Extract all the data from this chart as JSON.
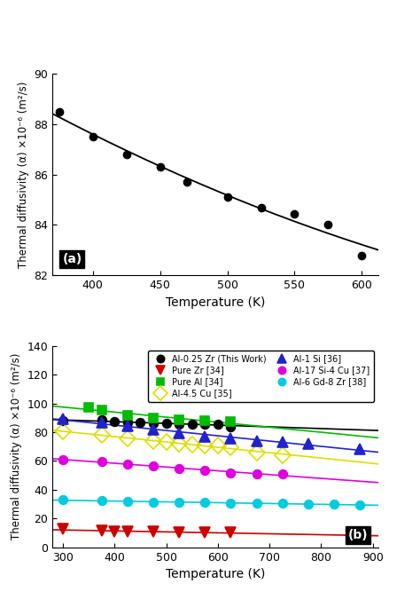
{
  "panel_a": {
    "xlabel": "Temperature (K)",
    "ylabel": "Thermal diffusivity (α) ×10⁻⁶ (m²/s)",
    "xlim": [
      370,
      612
    ],
    "ylim": [
      82,
      90
    ],
    "yticks": [
      82,
      84,
      86,
      88,
      90
    ],
    "xticks": [
      400,
      450,
      500,
      550,
      600
    ],
    "data_x": [
      375,
      400,
      425,
      450,
      470,
      500,
      525,
      550,
      575,
      600
    ],
    "data_y": [
      88.5,
      87.5,
      86.8,
      86.3,
      85.7,
      85.1,
      84.7,
      84.45,
      84.0,
      82.8
    ],
    "color": "#000000",
    "label": "(a)"
  },
  "panel_b": {
    "xlabel": "Temperature (K)",
    "ylabel": "Thermal diffusivity (α) ×10⁻⁶ (m²/s)",
    "xlim": [
      280,
      910
    ],
    "ylim": [
      0,
      140
    ],
    "yticks": [
      0,
      20,
      40,
      60,
      80,
      100,
      120,
      140
    ],
    "xticks": [
      300,
      400,
      500,
      600,
      700,
      800,
      900
    ],
    "label": "(b)",
    "series": [
      {
        "label": "Al-0.25 Zr (This Work)",
        "color": "#000000",
        "marker": "o",
        "markersize": 7,
        "x": [
          300,
          375,
          400,
          425,
          450,
          475,
          500,
          525,
          550,
          575,
          600,
          625
        ],
        "y": [
          88.0,
          88.5,
          87.5,
          87.0,
          86.5,
          86.2,
          86.0,
          85.8,
          85.5,
          85.5,
          85.5,
          84.0
        ]
      },
      {
        "label": "Pure Zr [34]",
        "color": "#cc0000",
        "marker": "v",
        "markersize": 8,
        "x": [
          300,
          375,
          400,
          425,
          475,
          525,
          575,
          625
        ],
        "y": [
          12.5,
          11.5,
          11.2,
          11.0,
          10.8,
          10.5,
          10.3,
          10.2
        ]
      },
      {
        "label": "Pure Al [34]",
        "color": "#00bb00",
        "marker": "s",
        "markersize": 7,
        "x": [
          350,
          375,
          425,
          475,
          525,
          575,
          625
        ],
        "y": [
          97.0,
          95.5,
          92.0,
          90.0,
          88.5,
          88.0,
          87.5
        ]
      },
      {
        "label": "Al-4.5 Cu [35]",
        "color": "#dddd00",
        "marker": "D",
        "markersize": 9,
        "x": [
          300,
          375,
          425,
          475,
          500,
          525,
          550,
          575,
          600,
          625,
          675,
          725
        ],
        "y": [
          80.5,
          78.0,
          75.5,
          74.0,
          73.0,
          72.0,
          71.5,
          71.0,
          70.5,
          69.5,
          66.0,
          64.0
        ]
      },
      {
        "label": "Al-1 Si [36]",
        "color": "#2222cc",
        "marker": "^",
        "markersize": 8,
        "x": [
          300,
          375,
          425,
          475,
          525,
          575,
          625,
          675,
          725,
          775,
          875
        ],
        "y": [
          89.0,
          87.0,
          84.5,
          82.0,
          79.5,
          77.0,
          75.5,
          74.0,
          73.0,
          72.0,
          68.5
        ]
      },
      {
        "label": "Al-17 Si-4 Cu [37]",
        "color": "#dd00dd",
        "marker": "o",
        "markersize": 7,
        "x": [
          300,
          375,
          425,
          475,
          525,
          575,
          625,
          675,
          725
        ],
        "y": [
          61.0,
          59.5,
          58.0,
          56.5,
          55.0,
          53.5,
          51.5,
          51.0,
          51.0
        ]
      },
      {
        "label": "Al-6 Gd-8 Zr [38]",
        "color": "#00ccdd",
        "marker": "o",
        "markersize": 7,
        "x": [
          300,
          375,
          425,
          475,
          525,
          575,
          625,
          675,
          725,
          775,
          825,
          875
        ],
        "y": [
          33.0,
          32.5,
          32.0,
          31.5,
          31.2,
          31.0,
          30.8,
          30.5,
          30.5,
          30.2,
          29.8,
          29.5
        ]
      }
    ]
  }
}
